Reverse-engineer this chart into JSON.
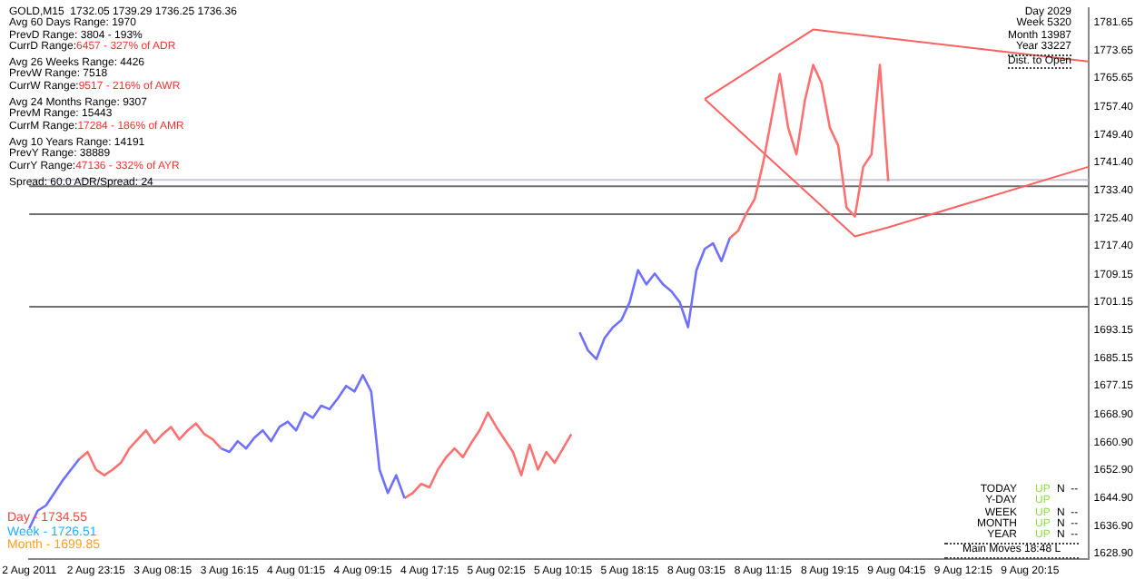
{
  "chart_data": {
    "type": "line",
    "title": "GOLD,M15  1732.05 1739.29 1736.25 1736.36",
    "categories": [
      "2 Aug 2011",
      null,
      null,
      null,
      null,
      null,
      null,
      null,
      "2 Aug 23:15",
      null,
      null,
      null,
      null,
      null,
      null,
      null,
      "3 Aug 08:15",
      null,
      null,
      null,
      null,
      null,
      null,
      null,
      "3 Aug 16:15",
      null,
      null,
      null,
      null,
      null,
      null,
      null,
      "4 Aug 01:15",
      null,
      null,
      null,
      null,
      null,
      null,
      null,
      "4 Aug 09:15",
      null,
      null,
      null,
      null,
      null,
      null,
      null,
      "4 Aug 17:15",
      null,
      null,
      null,
      null,
      null,
      null,
      null,
      "5 Aug 02:15",
      null,
      null,
      null,
      null,
      null,
      null,
      null,
      "5 Aug 10:15",
      null,
      null,
      null,
      null,
      null,
      null,
      null,
      "5 Aug 18:15",
      null,
      null,
      null,
      null,
      null,
      null,
      null,
      "8 Aug 03:15",
      null,
      null,
      null,
      null,
      null,
      null,
      null,
      "8 Aug 11:15",
      null,
      null,
      null,
      null,
      null,
      null,
      null,
      "8 Aug 19:15",
      null,
      null,
      null,
      null,
      null,
      null,
      null,
      "9 Aug 04:15",
      null,
      null,
      null,
      null,
      null,
      null,
      null,
      "9 Aug 12:15",
      null,
      null,
      null,
      null,
      null,
      null,
      null,
      "9 Aug 20:15",
      null,
      null,
      null,
      null,
      null,
      null,
      null
    ],
    "series": [
      {
        "color": "#7070ff",
        "values": [
          1636.1,
          1641.2,
          1642.7,
          1646.3,
          1649.9,
          1653.0,
          1656.1,
          null,
          null,
          null,
          null,
          null,
          null,
          null,
          null,
          null,
          null,
          null,
          null,
          null,
          null,
          null,
          null,
          1659.1,
          1658.1,
          1661.2,
          1659.1,
          1662.2,
          1664.3,
          1661.2,
          1665.3,
          1666.8,
          1664.3,
          1669.4,
          1667.9,
          1671.4,
          1670.4,
          1673.5,
          1677.1,
          1675.5,
          1680.2,
          1675.5,
          1653.0,
          1646.3,
          1651.4,
          1644.8,
          null,
          null,
          null,
          null,
          null,
          null,
          null,
          null,
          null,
          null,
          null,
          null,
          null,
          null,
          null,
          null,
          null,
          null,
          null,
          null,
          1692.5,
          1687.3,
          1684.8,
          1690.9,
          1694.0,
          1696.0,
          1701.2,
          1710.4,
          1706.3,
          1709.4,
          1706.3,
          1704.3,
          1701.2,
          1694.0,
          1710.4,
          1716.5,
          1718.1,
          1713.0,
          1719.6,
          null,
          null,
          null,
          null,
          null,
          null,
          null,
          null,
          null,
          null,
          null,
          null,
          null,
          null,
          null,
          null,
          null,
          null,
          null,
          null,
          null,
          null,
          null,
          null,
          null,
          null,
          null,
          null,
          null,
          null,
          null,
          null,
          null,
          null,
          null,
          null,
          null,
          null,
          null,
          null,
          null,
          null,
          null
        ]
      },
      {
        "color": "#ff7070",
        "values": [
          null,
          null,
          null,
          null,
          null,
          null,
          1656.1,
          1658.1,
          1653.0,
          1651.4,
          1653.0,
          1655.0,
          1659.1,
          1661.7,
          1664.3,
          1660.7,
          1663.2,
          1665.3,
          1661.7,
          1664.3,
          1666.3,
          1663.2,
          1661.7,
          1659.1,
          null,
          null,
          null,
          null,
          null,
          null,
          null,
          null,
          null,
          null,
          null,
          null,
          null,
          null,
          null,
          null,
          null,
          null,
          null,
          null,
          null,
          1644.8,
          1646.3,
          1648.9,
          1647.9,
          1653.0,
          1656.6,
          1659.1,
          1656.6,
          1660.7,
          1664.3,
          1669.4,
          1665.3,
          1661.7,
          1658.1,
          1651.4,
          1660.2,
          1653.0,
          1658.1,
          1655.0,
          1659.1,
          1663.2,
          null,
          null,
          null,
          null,
          null,
          null,
          null,
          null,
          null,
          null,
          null,
          null,
          null,
          null,
          null,
          null,
          null,
          null,
          1719.6,
          1721.7,
          1726.8,
          1730.9,
          1741.2,
          1754.0,
          1766.8,
          1751.4,
          1743.7,
          1759.1,
          1769.4,
          1764.2,
          1751.4,
          1746.3,
          1728.4,
          1725.8,
          1740.1,
          1743.7,
          1769.4,
          1736.0,
          null,
          null,
          null,
          null,
          null,
          null,
          null,
          null,
          null,
          null,
          null,
          null,
          null,
          null,
          null,
          null,
          null,
          null,
          null,
          null,
          null,
          null,
          null,
          null
        ]
      },
      {
        "color": "#ff6060",
        "values": [
          null,
          null,
          null,
          null,
          null,
          null,
          null,
          null,
          null,
          null,
          null,
          null,
          null,
          null,
          null,
          null,
          null,
          null,
          null,
          null,
          null,
          null,
          null,
          null,
          null,
          null,
          null,
          null,
          null,
          null,
          null,
          null,
          null,
          null,
          null,
          null,
          null,
          null,
          null,
          null,
          null,
          null,
          null,
          null,
          null,
          null,
          null,
          null,
          null,
          null,
          null,
          null,
          null,
          null,
          null,
          null,
          null,
          null,
          null,
          null,
          null,
          null,
          null,
          null,
          null,
          null,
          null,
          null,
          null,
          null,
          null,
          null,
          null,
          null,
          null,
          null,
          null,
          null,
          null,
          null,
          null,
          1759.6,
          null,
          null,
          null,
          null,
          null,
          null,
          null,
          null,
          null,
          null,
          null,
          null,
          1779.6,
          null,
          null,
          null,
          null,
          null,
          null,
          null,
          null,
          null,
          null,
          null,
          null,
          null,
          null,
          null,
          null,
          null,
          null,
          null,
          null,
          null,
          null,
          null,
          null,
          null,
          null,
          null,
          null,
          null,
          null,
          null,
          null,
          1770.4
        ]
      },
      {
        "color": "#ff6060",
        "values": [
          null,
          null,
          null,
          null,
          null,
          null,
          null,
          null,
          null,
          null,
          null,
          null,
          null,
          null,
          null,
          null,
          null,
          null,
          null,
          null,
          null,
          null,
          null,
          null,
          null,
          null,
          null,
          null,
          null,
          null,
          null,
          null,
          null,
          null,
          null,
          null,
          null,
          null,
          null,
          null,
          null,
          null,
          null,
          null,
          null,
          null,
          null,
          null,
          null,
          null,
          null,
          null,
          null,
          null,
          null,
          null,
          null,
          null,
          null,
          null,
          null,
          null,
          null,
          null,
          null,
          null,
          null,
          null,
          null,
          null,
          null,
          null,
          null,
          null,
          null,
          null,
          null,
          null,
          null,
          null,
          null,
          1759.6,
          null,
          null,
          null,
          null,
          null,
          null,
          null,
          null,
          null,
          null,
          null,
          null,
          null,
          null,
          null,
          null,
          null,
          1720.1,
          null,
          null,
          null,
          1722.7,
          null,
          null,
          null,
          null,
          null,
          null,
          null,
          null,
          null,
          null,
          null,
          null,
          null,
          null,
          null,
          null,
          null,
          null,
          null,
          null,
          null,
          null,
          null,
          1740.1
        ]
      }
    ],
    "ylim": [
      1627.4,
      1785.7
    ],
    "yticks": [
      {
        "value": 1628.9,
        "label": "1628.90"
      },
      {
        "value": 1636.9,
        "label": "1636.90"
      },
      {
        "value": 1644.9,
        "label": "1644.90"
      },
      {
        "value": 1652.9,
        "label": "1652.90"
      },
      {
        "value": 1660.9,
        "label": "1660.90"
      },
      {
        "value": 1668.9,
        "label": "1668.90"
      },
      {
        "value": 1677.15,
        "label": "1677.15"
      },
      {
        "value": 1685.15,
        "label": "1685.15"
      },
      {
        "value": 1693.15,
        "label": "1693.15"
      },
      {
        "value": 1701.15,
        "label": "1701.15"
      },
      {
        "value": 1709.15,
        "label": "1709.15"
      },
      {
        "value": 1717.4,
        "label": "1717.40"
      },
      {
        "value": 1725.4,
        "label": "1725.40"
      },
      {
        "value": 1733.4,
        "label": "1733.40"
      },
      {
        "value": 1741.4,
        "label": "1741.40"
      },
      {
        "value": 1749.4,
        "label": "1749.40"
      },
      {
        "value": 1757.4,
        "label": "1757.40"
      },
      {
        "value": 1765.65,
        "label": "1765.65"
      },
      {
        "value": 1773.65,
        "label": "1773.65"
      },
      {
        "value": 1781.65,
        "label": "1781.65"
      }
    ],
    "ref_lines": [
      {
        "axis": "y",
        "value": 1736.36,
        "color": "#c8c8dc"
      },
      {
        "axis": "y",
        "value": 1734.55,
        "color": "#707070"
      },
      {
        "axis": "y",
        "value": 1726.51,
        "color": "#707070"
      },
      {
        "axis": "y",
        "value": 1699.85,
        "color": "#707070"
      }
    ],
    "annotations": [
      "Avg 60 Days Range: 1970",
      "PrevD Range: 3804 - 193%",
      "CurrD Range:6457 - 327% of ADR",
      "Avg 26 Weeks Range: 4426",
      "PrevW Range: 7518",
      "CurrW Range:9517 - 216% of AWR",
      "Avg 24 Months Range: 9307",
      "PrevM Range: 15443",
      "CurrM Range:17284 - 186% of AMR",
      "Avg 10 Years Range: 14191",
      "PrevY Range: 38889",
      "CurrY Range:47136 - 332% of AYR",
      "Spread: 60.0 ADR/Spread: 24",
      "Day 2029",
      "Week 5320",
      "Month 13987",
      "Year 33227",
      "Dist. to Open",
      "TODAY UP N --",
      "Y-DAY UP",
      "WEEK UP N --",
      "MONTH UP N --",
      "YEAR UP N --",
      "Main Moves 18:48 L",
      "Day - 1734.55",
      "Week - 1726.51",
      "Month - 1699.85"
    ],
    "grid": false,
    "legend": false
  }
}
